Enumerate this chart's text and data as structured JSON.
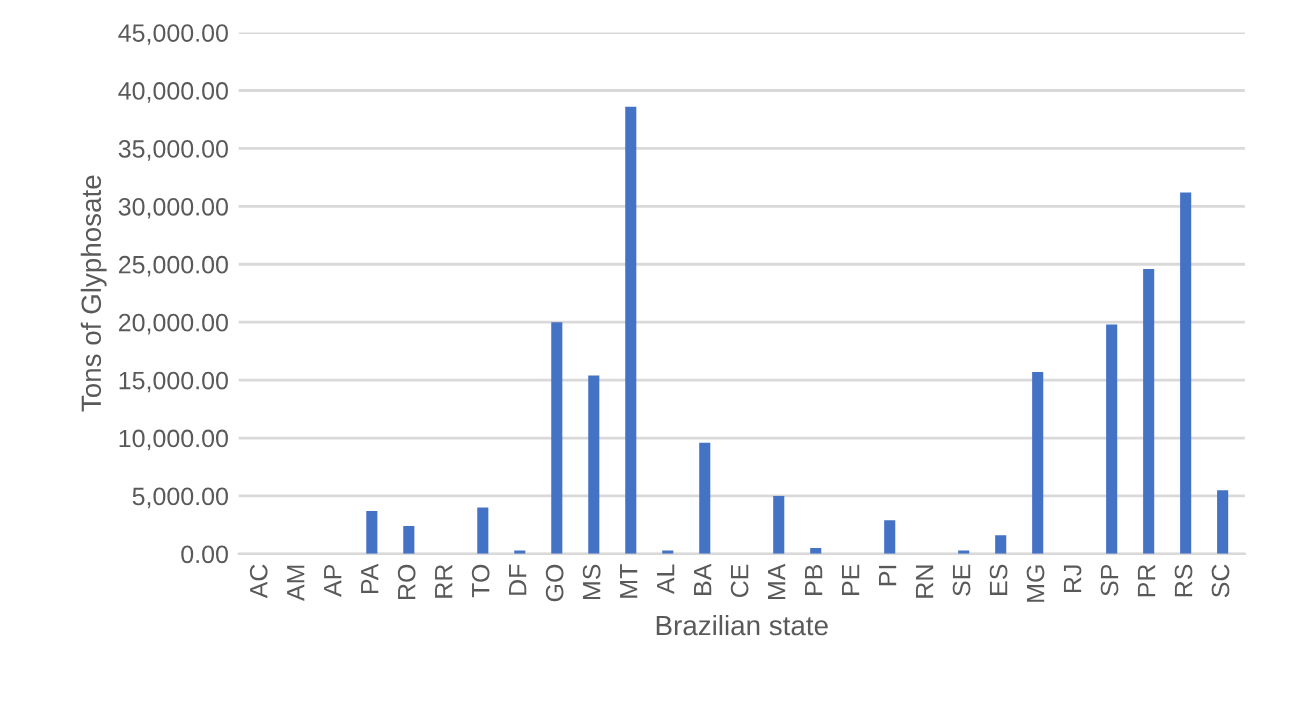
{
  "chart_data": {
    "type": "bar",
    "xlabel": "Brazilian state",
    "ylabel": "Tons of Glyphosate",
    "categories": [
      "AC",
      "AM",
      "AP",
      "PA",
      "RO",
      "RR",
      "TO",
      "DF",
      "GO",
      "MS",
      "MT",
      "AL",
      "BA",
      "CE",
      "MA",
      "PB",
      "PE",
      "PI",
      "RN",
      "SE",
      "ES",
      "MG",
      "RJ",
      "SP",
      "PR",
      "RS",
      "SC"
    ],
    "values": [
      0,
      0,
      0,
      3700,
      2400,
      0,
      4000,
      300,
      20000,
      15400,
      38600,
      300,
      9600,
      0,
      5000,
      500,
      0,
      2900,
      0,
      300,
      1600,
      15700,
      0,
      19800,
      24600,
      31200,
      5500
    ],
    "color": "#4472c4",
    "ylim": [
      0,
      45000
    ],
    "yticks": [
      {
        "value": 0,
        "label": "0.00"
      },
      {
        "value": 5000,
        "label": "5,000.00"
      },
      {
        "value": 10000,
        "label": "10,000.00"
      },
      {
        "value": 15000,
        "label": "15,000.00"
      },
      {
        "value": 20000,
        "label": "20,000.00"
      },
      {
        "value": 25000,
        "label": "25,000.00"
      },
      {
        "value": 30000,
        "label": "30,000.00"
      },
      {
        "value": 35000,
        "label": "35,000.00"
      },
      {
        "value": 40000,
        "label": "40,000.00"
      },
      {
        "value": 45000,
        "label": "45,000.00"
      }
    ],
    "grid": "y"
  }
}
